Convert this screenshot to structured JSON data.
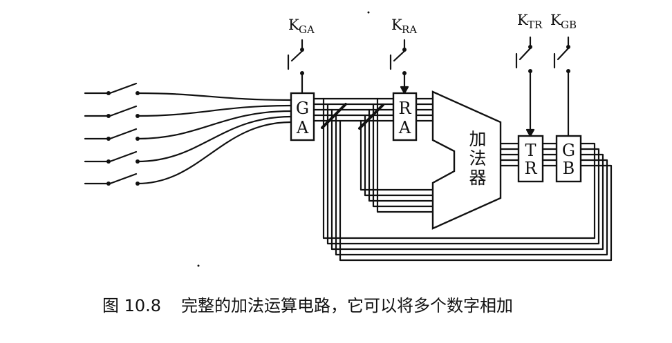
{
  "diagram": {
    "switch_labels": {
      "kga": {
        "main": "K",
        "sub": "GA"
      },
      "kra": {
        "main": "K",
        "sub": "RA"
      },
      "ktr": {
        "main": "K",
        "sub": "TR"
      },
      "kgb": {
        "main": "K",
        "sub": "GB"
      }
    },
    "boxes": {
      "ga": {
        "top": "G",
        "bottom": "A"
      },
      "ra": {
        "top": "R",
        "bottom": "A"
      },
      "tr": {
        "top": "T",
        "bottom": "R"
      },
      "gb": {
        "top": "G",
        "bottom": "B"
      }
    },
    "adder": [
      "加",
      "法",
      "器"
    ],
    "caption": {
      "number": "图 10.8",
      "text": "完整的加法运算电路，它可以将多个数字相加"
    }
  },
  "colors": {
    "ink": "#111111",
    "background": "#ffffff"
  }
}
